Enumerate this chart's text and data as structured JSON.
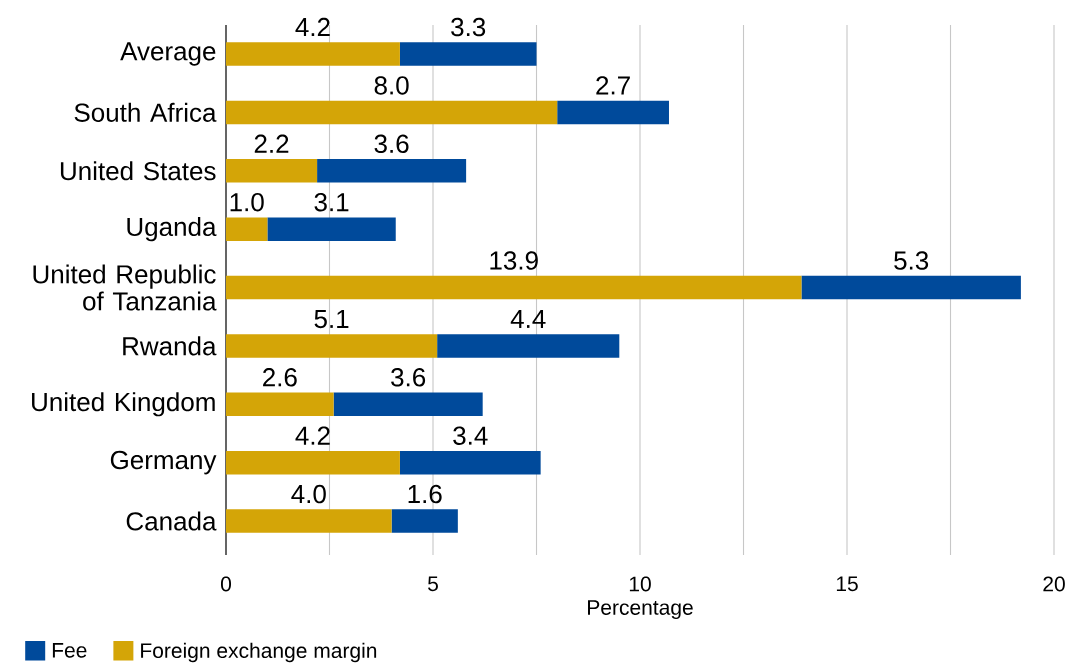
{
  "chart_data": {
    "type": "bar",
    "orientation": "horizontal",
    "stacked": true,
    "categories": [
      "Average",
      "South Africa",
      "United States",
      "Uganda",
      "United Republic of Tanzania",
      "Rwanda",
      "United Kingdom",
      "Germany",
      "Canada"
    ],
    "series": [
      {
        "name": "Foreign exchange margin",
        "color": "#d4a507",
        "values": [
          4.2,
          8.0,
          2.2,
          1.0,
          13.9,
          5.1,
          2.6,
          4.2,
          4.0
        ],
        "value_labels": [
          "4.2",
          "8.0",
          "2.2",
          "1.0",
          "13.9",
          "5.1",
          "2.6",
          "4.2",
          "4.0"
        ]
      },
      {
        "name": "Fee",
        "color": "#004a9b",
        "values": [
          3.3,
          2.7,
          3.6,
          3.1,
          5.3,
          4.4,
          3.6,
          3.4,
          1.6
        ],
        "value_labels": [
          "3.3",
          "2.7",
          "3.6",
          "3.1",
          "5.3",
          "4.4",
          "3.6",
          "3.4",
          "1.6"
        ]
      }
    ],
    "xlabel": "Percentage",
    "xlim": [
      0,
      20
    ],
    "xticks": [
      0,
      {
        "value": 2.5,
        "label": null
      },
      5,
      {
        "value": 7.5,
        "label": null
      },
      10,
      {
        "value": 12.5,
        "label": null
      },
      15,
      {
        "value": 17.5,
        "label": null
      },
      20
    ],
    "grid": "x",
    "legend": "bottom left"
  }
}
